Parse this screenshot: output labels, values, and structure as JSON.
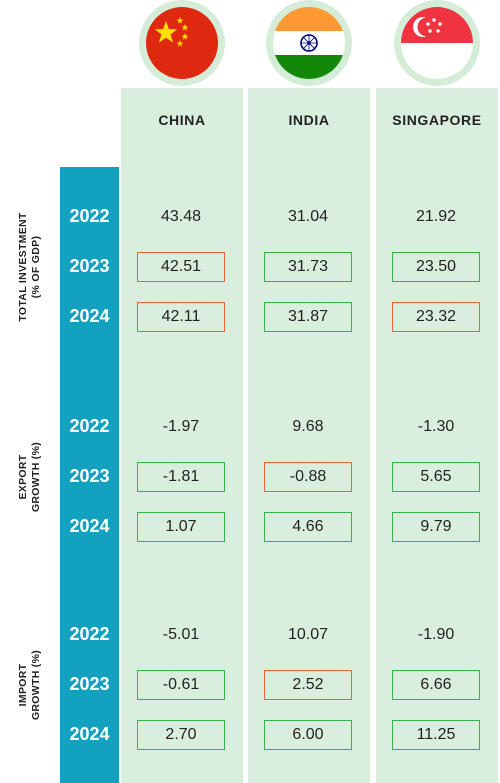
{
  "chart_data": {
    "type": "table",
    "columns": [
      {
        "name": "CHINA",
        "flag_icon": "china-flag-icon"
      },
      {
        "name": "INDIA",
        "flag_icon": "india-flag-icon"
      },
      {
        "name": "SINGAPORE",
        "flag_icon": "singapore-flag-icon"
      }
    ],
    "sections": [
      {
        "label_line1": "TOTAL INVESTMENT",
        "label_line2": "(% OF GDP)",
        "rows": [
          {
            "year": "2022",
            "values": [
              "43.48",
              "31.04",
              "21.92"
            ],
            "change": [
              "none",
              "none",
              "none"
            ]
          },
          {
            "year": "2023",
            "values": [
              "42.51",
              "31.73",
              "23.50"
            ],
            "change": [
              "down",
              "up",
              "up"
            ]
          },
          {
            "year": "2024",
            "values": [
              "42.11",
              "31.87",
              "23.32"
            ],
            "change": [
              "down",
              "up",
              "down"
            ]
          }
        ]
      },
      {
        "label_line1": "EXPORT",
        "label_line2": "GROWTH (%)",
        "rows": [
          {
            "year": "2022",
            "values": [
              "-1.97",
              "9.68",
              "-1.30"
            ],
            "change": [
              "none",
              "none",
              "none"
            ]
          },
          {
            "year": "2023",
            "values": [
              "-1.81",
              "-0.88",
              "5.65"
            ],
            "change": [
              "up",
              "down",
              "up"
            ]
          },
          {
            "year": "2024",
            "values": [
              "1.07",
              "4.66",
              "9.79"
            ],
            "change": [
              "up",
              "up",
              "up"
            ]
          }
        ]
      },
      {
        "label_line1": "IMPORT",
        "label_line2": "GROWTH (%)",
        "rows": [
          {
            "year": "2022",
            "values": [
              "-5.01",
              "10.07",
              "-1.90"
            ],
            "change": [
              "none",
              "none",
              "none"
            ]
          },
          {
            "year": "2023",
            "values": [
              "-0.61",
              "2.52",
              "6.66"
            ],
            "change": [
              "up",
              "down",
              "up"
            ]
          },
          {
            "year": "2024",
            "values": [
              "2.70",
              "6.00",
              "11.25"
            ],
            "change": [
              "up",
              "up",
              "up"
            ]
          }
        ]
      }
    ],
    "colors": {
      "increase_border": "#35b24a",
      "decrease_border": "#e8613a",
      "year_band": "#12a2c0",
      "column_background": "#daeedd"
    }
  }
}
